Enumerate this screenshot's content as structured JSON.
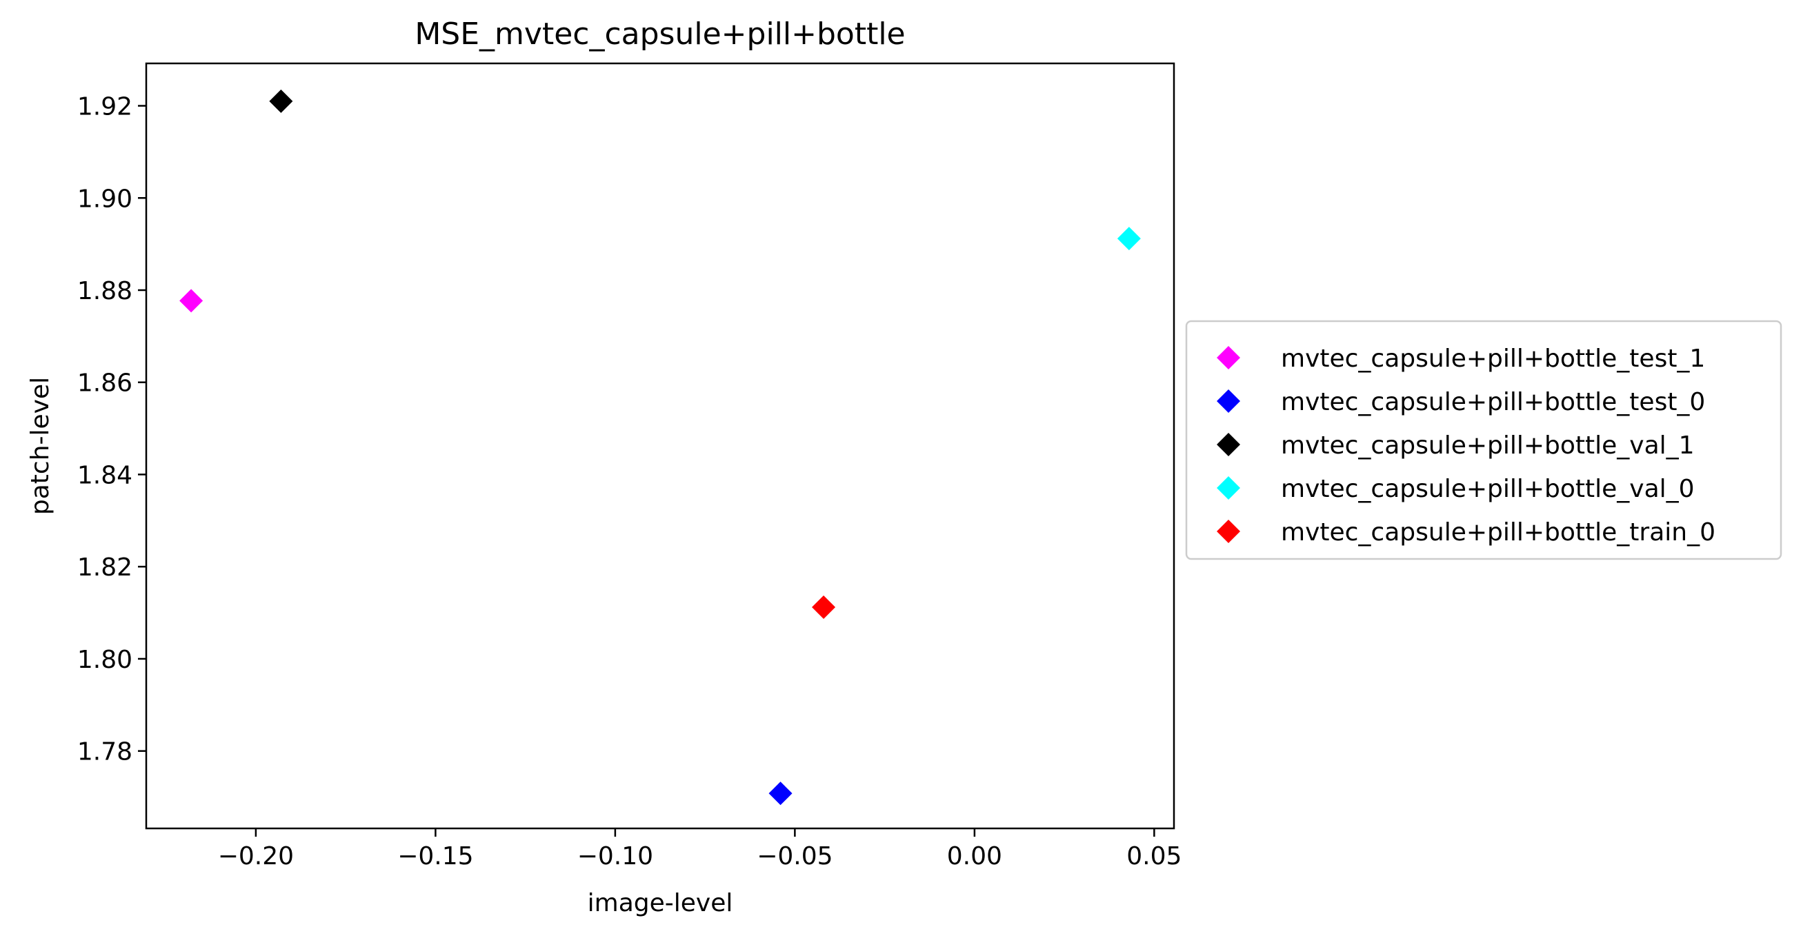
{
  "chart_data": {
    "type": "scatter",
    "title": "MSE_mvtec_capsule+pill+bottle",
    "xlabel": "image-level",
    "ylabel": "patch-level",
    "xlim": [
      -0.2305,
      0.0555
    ],
    "ylim": [
      1.7632,
      1.9292
    ],
    "x_ticks": [
      -0.2,
      -0.15,
      -0.1,
      -0.05,
      0.0,
      0.05
    ],
    "x_tick_labels": [
      "−0.20",
      "−0.15",
      "−0.10",
      "−0.05",
      "0.00",
      "0.05"
    ],
    "y_ticks": [
      1.78,
      1.8,
      1.82,
      1.84,
      1.86,
      1.88,
      1.9,
      1.92
    ],
    "y_tick_labels": [
      "1.78",
      "1.80",
      "1.82",
      "1.84",
      "1.86",
      "1.88",
      "1.90",
      "1.92"
    ],
    "grid": false,
    "legend_position": "outside right, center",
    "marker": "diamond",
    "series": [
      {
        "name": "mvtec_capsule+pill+bottle_test_1",
        "color": "#ff00ff",
        "x": [
          -0.218
        ],
        "y": [
          1.8777
        ]
      },
      {
        "name": "mvtec_capsule+pill+bottle_test_0",
        "color": "#0000ff",
        "x": [
          -0.054
        ],
        "y": [
          1.7708
        ]
      },
      {
        "name": "mvtec_capsule+pill+bottle_val_1",
        "color": "#000000",
        "x": [
          -0.193
        ],
        "y": [
          1.921
        ]
      },
      {
        "name": "mvtec_capsule+pill+bottle_val_0",
        "color": "#00ffff",
        "x": [
          0.043
        ],
        "y": [
          1.8912
        ]
      },
      {
        "name": "mvtec_capsule+pill+bottle_train_0",
        "color": "#ff0000",
        "x": [
          -0.042
        ],
        "y": [
          1.8112
        ]
      }
    ]
  }
}
